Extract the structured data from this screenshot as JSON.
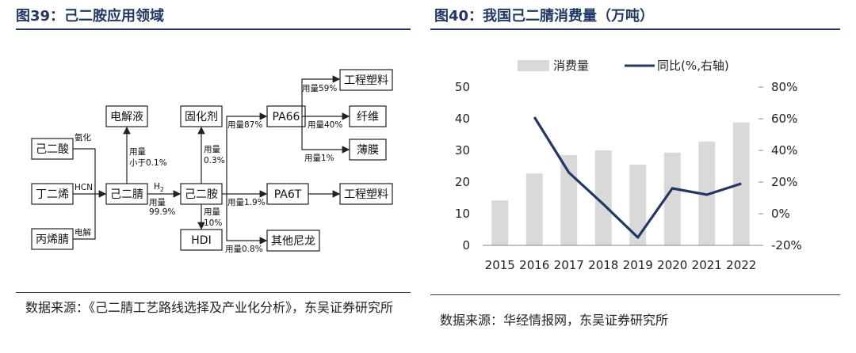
{
  "left_panel": {
    "title": "图39：己二胺应用领域",
    "source": "数据来源：《己二腈工艺路线选择及产业化分析》，东吴证券研究所",
    "diagram": {
      "nodes": {
        "adipic_acid": "己二酸",
        "butadiene": "丁二烯",
        "acrylonitrile": "丙烯腈",
        "electrolyte": "电解液",
        "adiponitrile": "己二腈",
        "curing_agent": "固化剂",
        "hmda": "己二胺",
        "hdi": "HDI",
        "pa66": "PA66",
        "pa6t": "PA6T",
        "other_nylon": "其他尼龙",
        "eng_plastic_1": "工程塑料",
        "fiber": "纤维",
        "film": "薄膜",
        "eng_plastic_2": "工程塑料"
      },
      "edge_labels": {
        "ammoniation": "氨化",
        "hcn": "HCN",
        "electrolysis": "电解",
        "elec_use_1": "用量",
        "elec_use_2": "小于0.1%",
        "h2": "H",
        "h2_sub": "2",
        "adn_use_1": "用量",
        "adn_use_2": "99.9%",
        "curing_use_1": "用量",
        "curing_use_2": "0.3%",
        "hdi_use_1": "用量",
        "hdi_use_2": "10%",
        "pa66_use": "用量87%",
        "pa6t_use": "用量1.9%",
        "other_use": "用量0.8%",
        "plastic_use": "用量59%",
        "fiber_use": "用量40%",
        "film_use": "用量1%"
      }
    }
  },
  "right_panel": {
    "title": "图40：我国己二腈消费量（万吨）",
    "source": "数据来源：华经情报网，东吴证券研究所",
    "chart_data": {
      "type": "bar+line",
      "categories": [
        "2015",
        "2016",
        "2017",
        "2018",
        "2019",
        "2020",
        "2021",
        "2022"
      ],
      "series": [
        {
          "name": "消费量",
          "type": "bar",
          "axis": "left",
          "color": "#d9d9d9",
          "values": [
            14.2,
            22.7,
            28.5,
            30.0,
            25.5,
            29.3,
            32.8,
            38.8
          ]
        },
        {
          "name": "同比(%,右轴)",
          "type": "line",
          "axis": "right",
          "color": "#1f3864",
          "values": [
            null,
            61,
            26,
            6,
            -15,
            16,
            12,
            19
          ]
        }
      ],
      "left_axis": {
        "min": 0,
        "max": 50,
        "ticks": [
          "0",
          "10",
          "20",
          "30",
          "40",
          "50"
        ]
      },
      "right_axis": {
        "min": -20,
        "max": 80,
        "ticks": [
          "-20%",
          "0%",
          "20%",
          "40%",
          "60%",
          "80%"
        ]
      },
      "legend_position": "top"
    }
  }
}
